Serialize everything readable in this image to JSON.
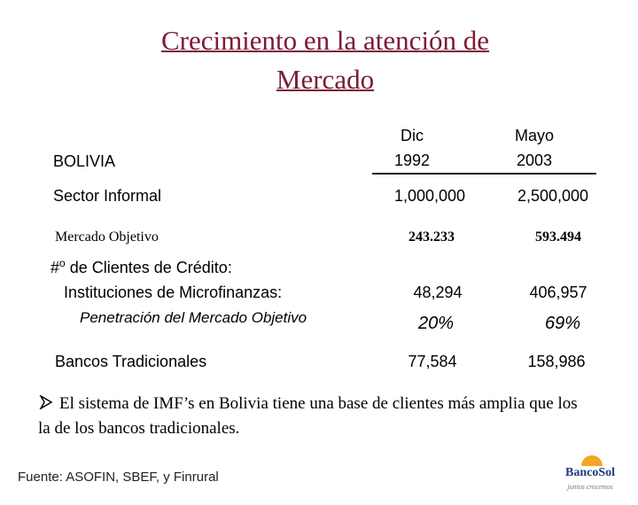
{
  "title": {
    "lines": [
      "Crecimiento en la atención de",
      "Mercado"
    ]
  },
  "table": {
    "header": {
      "label": "BOLIVIA",
      "col1": [
        "Dic",
        "1992"
      ],
      "col2": [
        "Mayo",
        "2003"
      ]
    },
    "rows": [
      {
        "label": "Sector Informal",
        "col1": "1,000,000",
        "col2": "2,500,000"
      },
      {
        "label": "Mercado Objetivo",
        "col1": "243.233",
        "col2": "593.494"
      },
      {
        "label": {
          "prefix": "#",
          "sup": "o",
          "rest": "de Clientes de Crédito:"
        }
      },
      {
        "label": "Instituciones de Microfinanzas:",
        "col1": "48,294",
        "col2": "406,957"
      },
      {
        "label": "Penetración del Mercado Objetivo",
        "col1": "20%",
        "col2": "69%"
      },
      {
        "label": "Bancos Tradicionales",
        "col1": "77,584",
        "col2": "158,986"
      }
    ]
  },
  "bullet": "El sistema de IMF’s en Bolivia tiene una base de clientes más amplia que los la de los bancos tradicionales.",
  "footer": {
    "source": "Fuente: ASOFIN, SBEF, y Finrural",
    "logo": "BancoSol",
    "tagline": "juntos crecemos"
  }
}
